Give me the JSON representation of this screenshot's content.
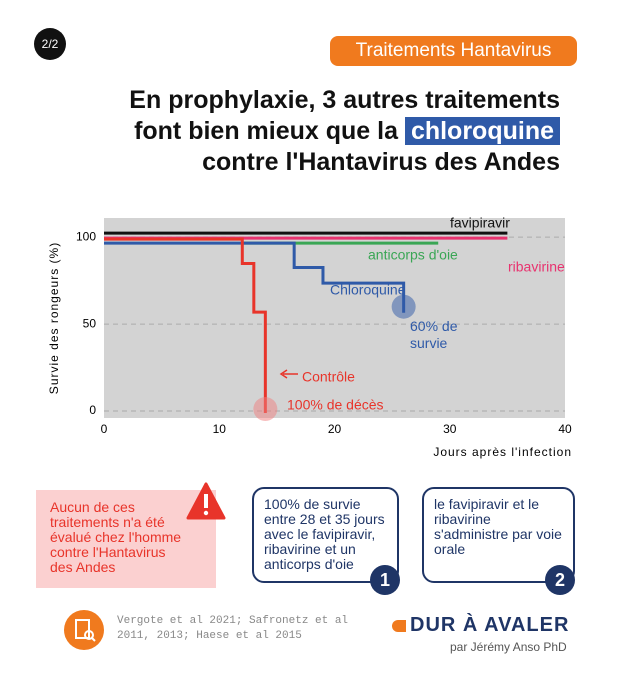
{
  "badge": "2/2",
  "tag": "Traitements Hantavirus",
  "title": {
    "line1": "En prophylaxie, 3 autres traitements",
    "line2_start": "font bien mieux que la",
    "highlight": "chloroquine",
    "line3": "contre l'Hantavirus des Andes"
  },
  "chart_data": {
    "type": "line",
    "step": true,
    "ylabel": "Survie des rongeurs (%)",
    "xlabel": "Jours après l'infection",
    "xlim": [
      0,
      40
    ],
    "xticks": [
      0,
      10,
      20,
      30,
      40
    ],
    "ylim": [
      -4,
      111
    ],
    "yticks": [
      0,
      50,
      100
    ],
    "grid": true,
    "series": [
      {
        "name": "favipiravir",
        "color": "#111111",
        "x": [
          0,
          35
        ],
        "values": [
          100,
          100
        ]
      },
      {
        "name": "ribavirine",
        "color": "#e8336f",
        "x": [
          0,
          35
        ],
        "values": [
          100,
          100
        ]
      },
      {
        "name": "anticorps d'oie",
        "color": "#3aa655",
        "x": [
          12,
          29
        ],
        "values": [
          100,
          100
        ]
      },
      {
        "name": "Chloroquine",
        "color": "#2f5aa8",
        "x": [
          0,
          16.5,
          19,
          26
        ],
        "values": [
          100,
          86,
          77,
          60
        ]
      },
      {
        "name": "Contrôle",
        "color": "#e8342a",
        "x": [
          0,
          12,
          13,
          14
        ],
        "values": [
          100,
          86,
          58,
          0
        ]
      }
    ],
    "annotations": [
      "60% de survie",
      "100% de décès"
    ]
  },
  "warning": "Aucun de ces traitements n'a été évalué chez l'homme contre l'Hantavirus des Andes",
  "box1": {
    "text": "100% de survie entre 28 et 35 jours avec le favipiravir, ribavirine et un anticorps d'oie",
    "number": "1"
  },
  "box2": {
    "text": "le favipiravir et le ribavirine s'administre par voie orale",
    "number": "2"
  },
  "reference": "Vergote et al 2021; Safronetz et al 2011, 2013; Haese et al 2015",
  "brand": "DUR À AVALER",
  "author": "par Jérémy Anso PhD"
}
